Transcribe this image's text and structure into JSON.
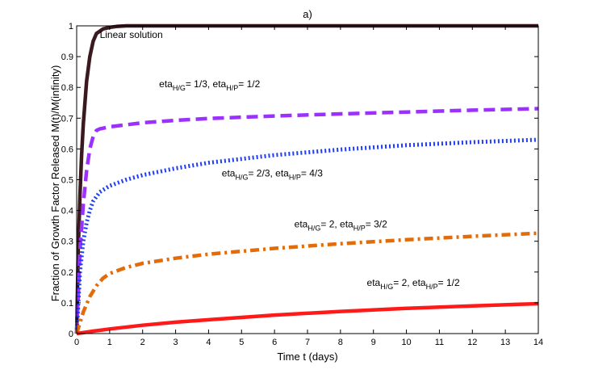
{
  "chart_data": {
    "type": "line",
    "title": "a)",
    "xlabel": "Time t (days)",
    "ylabel": "Fraction of Growth Factor Released M(t)/M(infinity)",
    "xlim": [
      0,
      14
    ],
    "ylim": [
      0,
      1
    ],
    "xticks": [
      "0",
      "1",
      "2",
      "3",
      "4",
      "5",
      "6",
      "7",
      "8",
      "9",
      "10",
      "11",
      "12",
      "13",
      "14"
    ],
    "yticks": [
      "0",
      "0.1",
      "0.2",
      "0.3",
      "0.4",
      "0.5",
      "0.6",
      "0.7",
      "0.8",
      "0.9",
      "1"
    ],
    "grid": false,
    "series": [
      {
        "name": "Linear solution",
        "color": "#3a1a1f",
        "style": "solid",
        "x": [
          0,
          0.05,
          0.1,
          0.15,
          0.2,
          0.3,
          0.4,
          0.5,
          0.6,
          0.8,
          1.0,
          1.2,
          1.5,
          2,
          3,
          14
        ],
        "y": [
          0,
          0.28,
          0.45,
          0.58,
          0.68,
          0.82,
          0.9,
          0.95,
          0.975,
          0.99,
          0.995,
          0.998,
          1.0,
          1.0,
          1.0,
          1.0
        ]
      },
      {
        "name": "eta_{H/G}= 1/3, eta_{H/P}= 1/2",
        "color": "#9b30ff",
        "style": "dashed",
        "x": [
          0,
          0.1,
          0.2,
          0.3,
          0.4,
          0.5,
          0.6,
          0.7,
          1,
          2,
          3,
          4,
          6,
          8,
          10,
          12,
          14
        ],
        "y": [
          0,
          0.27,
          0.42,
          0.53,
          0.6,
          0.64,
          0.66,
          0.665,
          0.672,
          0.685,
          0.693,
          0.699,
          0.707,
          0.714,
          0.72,
          0.726,
          0.731
        ]
      },
      {
        "name": "eta_{H/G}= 2/3, eta_{H/P}= 4/3",
        "color": "#1f3ef5",
        "style": "dotted",
        "x": [
          0,
          0.1,
          0.2,
          0.3,
          0.4,
          0.5,
          0.7,
          1,
          1.5,
          2,
          3,
          4,
          6,
          8,
          10,
          12,
          14
        ],
        "y": [
          0,
          0.2,
          0.3,
          0.36,
          0.4,
          0.43,
          0.46,
          0.48,
          0.5,
          0.515,
          0.537,
          0.555,
          0.58,
          0.598,
          0.612,
          0.622,
          0.63
        ]
      },
      {
        "name": "eta_{H/G}= 2, eta_{H/P}= 3/2",
        "color": "#e36c0a",
        "style": "dashdot",
        "x": [
          0,
          0.2,
          0.4,
          0.6,
          0.8,
          1,
          1.5,
          2,
          3,
          4,
          6,
          8,
          10,
          12,
          14
        ],
        "y": [
          0,
          0.07,
          0.12,
          0.155,
          0.18,
          0.195,
          0.215,
          0.228,
          0.245,
          0.258,
          0.277,
          0.292,
          0.305,
          0.316,
          0.326
        ]
      },
      {
        "name": "eta_{H/G}= 2, eta_{H/P}= 1/2",
        "color": "#ff1a1a",
        "style": "solid",
        "x": [
          0,
          0.5,
          1,
          2,
          3,
          4,
          6,
          8,
          10,
          12,
          14
        ],
        "y": [
          0,
          0.008,
          0.015,
          0.027,
          0.037,
          0.045,
          0.06,
          0.072,
          0.082,
          0.09,
          0.097
        ]
      }
    ],
    "annotations": [
      {
        "series": 0,
        "text": "Linear solution",
        "at": [
          0.7,
          0.96
        ]
      },
      {
        "series": 1,
        "base1": "eta",
        "sub1": "H/G",
        "mid": "= 1/3, eta",
        "sub2": "H/P",
        "tail": "= 1/2",
        "at": [
          2.5,
          0.8
        ]
      },
      {
        "series": 2,
        "base1": "eta",
        "sub1": "H/G",
        "mid": "= 2/3, eta",
        "sub2": "H/P",
        "tail": "= 4/3",
        "at": [
          4.4,
          0.51
        ]
      },
      {
        "series": 3,
        "base1": "eta",
        "sub1": "H/G",
        "mid": "= 2, eta",
        "sub2": "H/P",
        "tail": "= 3/2",
        "at": [
          6.6,
          0.345
        ]
      },
      {
        "series": 4,
        "base1": "eta",
        "sub1": "H/G",
        "mid": "= 2, eta",
        "sub2": "H/P",
        "tail": "= 1/2",
        "at": [
          8.8,
          0.155
        ]
      }
    ]
  }
}
